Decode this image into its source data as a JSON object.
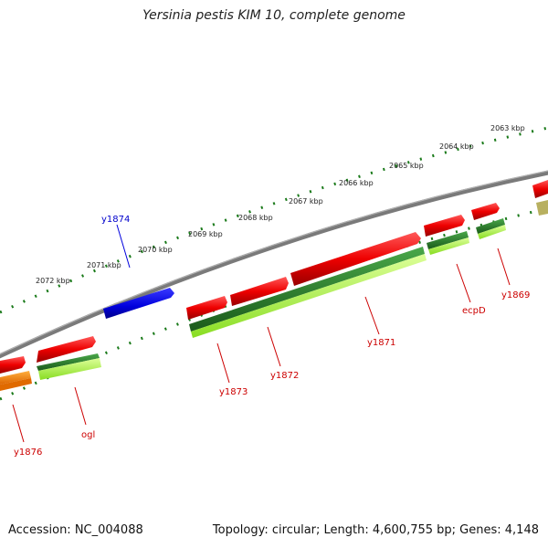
{
  "title": "Yersinia pestis KIM 10, complete genome",
  "accession": "Accession: NC_004088",
  "summary": "Topology: circular; Length: 4,600,755 bp; Genes: 4,148",
  "kbp_ticks": [
    "2063 kbp",
    "2064 kbp",
    "2065 kbp",
    "2066 kbp",
    "2067 kbp",
    "2068 kbp",
    "2069 kbp",
    "2070 kbp",
    "2071 kbp",
    "2072 kbp"
  ],
  "genes_outer": [
    {
      "label": "y1874",
      "color": "#0000cc"
    }
  ],
  "genes_inner": [
    {
      "label": "y1869",
      "color": "#cc0000"
    },
    {
      "label": "ecpD",
      "color": "#cc0000"
    },
    {
      "label": "y1871",
      "color": "#cc0000"
    },
    {
      "label": "y1872",
      "color": "#cc0000"
    },
    {
      "label": "y1873",
      "color": "#cc0000"
    },
    {
      "label": "ogl",
      "color": "#cc0000"
    },
    {
      "label": "y1876",
      "color": "#cc0000"
    }
  ],
  "colors": {
    "backbone": "#808080",
    "ticks": "#1a7a1a",
    "red": "#ee0000",
    "blue": "#1010dd",
    "dark_green": "#2e8b2e",
    "lime": "#aaff44",
    "orange": "#ff8c00",
    "olive": "#b8b060"
  }
}
